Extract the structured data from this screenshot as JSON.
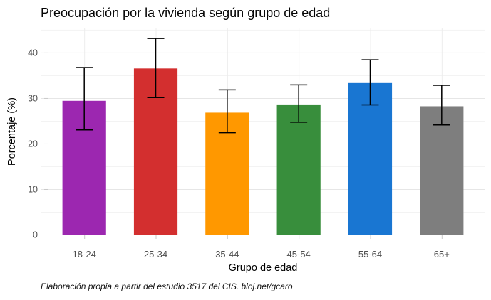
{
  "chart_data": {
    "type": "bar",
    "title": "Preocupación por la vivienda según grupo de edad",
    "xlabel": "Grupo de edad",
    "ylabel": "Porcentaje (%)",
    "caption": "Elaboración propia a partir del estudio 3517 del CIS. bloj.net/gcaro",
    "categories": [
      "18-24",
      "25-34",
      "35-44",
      "45-54",
      "55-64",
      "65+"
    ],
    "values": [
      29.4,
      36.5,
      26.8,
      28.6,
      33.3,
      28.2
    ],
    "error_low": [
      23.0,
      30.1,
      22.4,
      24.7,
      28.5,
      24.1
    ],
    "error_high": [
      36.7,
      43.1,
      31.8,
      32.9,
      38.4,
      32.8
    ],
    "bar_colors": [
      "#9C27B0",
      "#D32F2F",
      "#FF9800",
      "#388E3C",
      "#1976D2",
      "#7E7E7E"
    ],
    "ylim": [
      0,
      45.3
    ],
    "yticks": [
      0,
      10,
      20,
      30,
      40
    ],
    "yticks_minor": [
      5,
      15,
      25,
      35,
      45
    ],
    "legend": "none",
    "grid": "horizontal major+minor, vertical major at category centers"
  },
  "colors": {
    "background": "#FFFFFF",
    "axis_text": "#4D4D4D",
    "grid_major": "#E6E6E6",
    "grid_minor": "#F3F3F3",
    "grid_vertical": "#ECECEC",
    "axis_line": "#D9D9D9",
    "tick_mark": "#C9C9C9",
    "error_bar": "#000000",
    "title_text": "#050505"
  }
}
